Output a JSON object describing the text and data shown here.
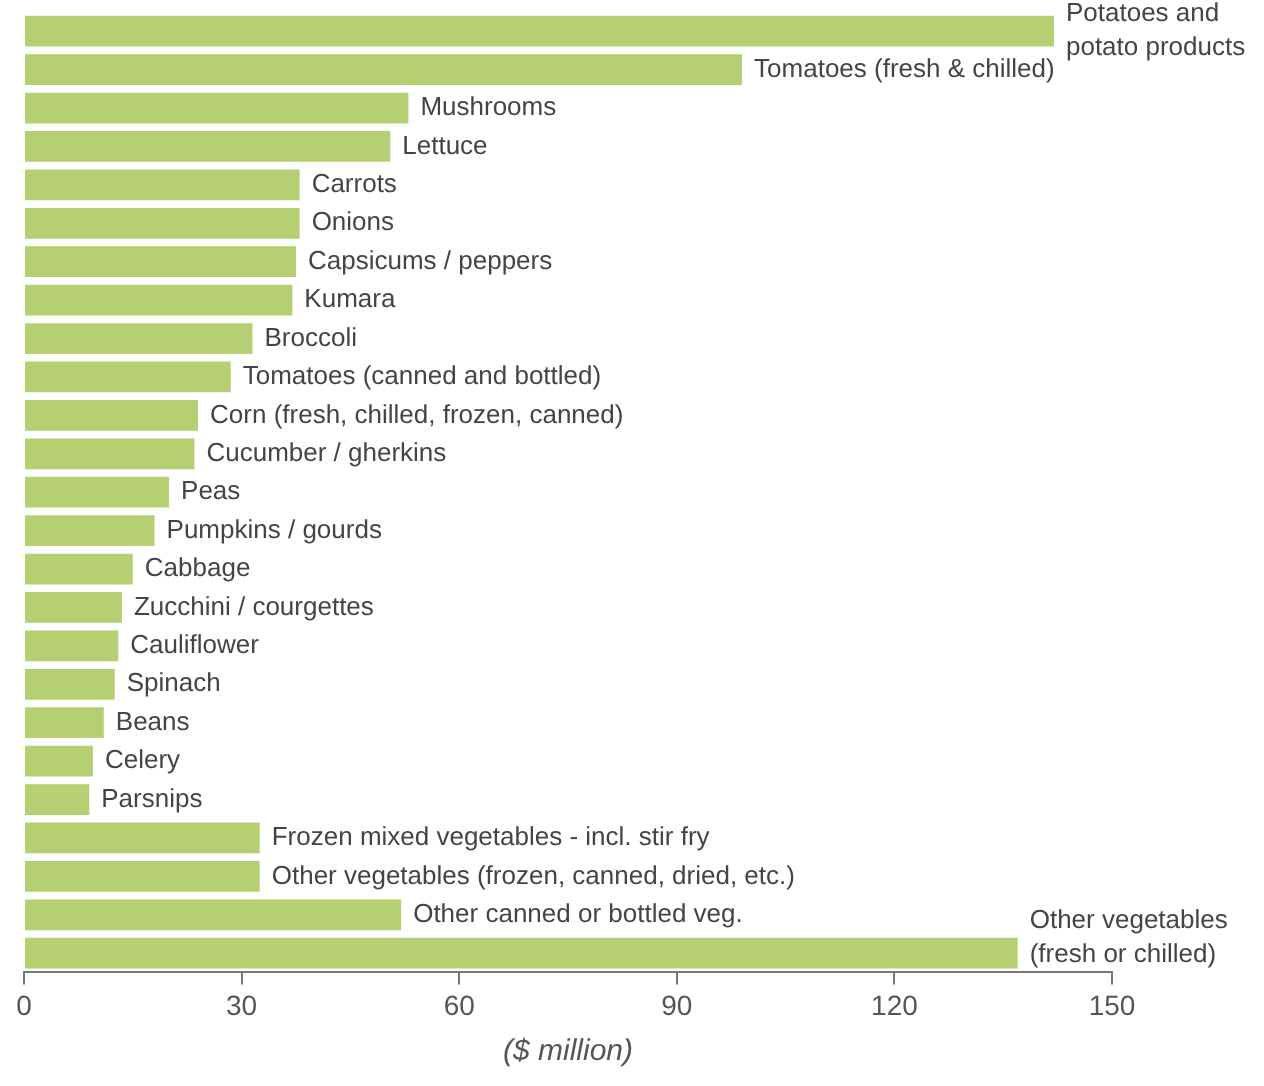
{
  "chart_data": {
    "type": "bar",
    "orientation": "horizontal",
    "xlabel": "($ million)",
    "categories": [
      "Potatoes and potato products",
      "Tomatoes (fresh & chilled)",
      "Mushrooms",
      "Lettuce",
      "Carrots",
      "Onions",
      "Capsicums / peppers",
      "Kumara",
      "Broccoli",
      "Tomatoes (canned and bottled)",
      "Corn (fresh, chilled, frozen, canned)",
      "Cucumber / gherkins",
      "Peas",
      "Pumpkins / gourds",
      "Cabbage",
      "Zucchini / courgettes",
      "Cauliflower",
      "Spinach",
      "Beans",
      "Celery",
      "Parsnips",
      "Frozen mixed vegetables - incl. stir fry",
      "Other vegetables (frozen, canned, dried, etc.)",
      "Other canned or bottled veg.",
      "Other vegetables (fresh or chilled)"
    ],
    "values": [
      142,
      99,
      53,
      50.5,
      38,
      38,
      37.5,
      37,
      31.5,
      28.5,
      24,
      23.5,
      20,
      18,
      15,
      13.5,
      13,
      12.5,
      11,
      9.5,
      9,
      32.5,
      32.5,
      52,
      137
    ],
    "color": "#b5cf73",
    "xlim": [
      0,
      150
    ],
    "xticks": [
      0,
      30,
      60,
      90,
      120,
      150
    ],
    "grid": false,
    "legend": false,
    "tick_labels": "x"
  }
}
